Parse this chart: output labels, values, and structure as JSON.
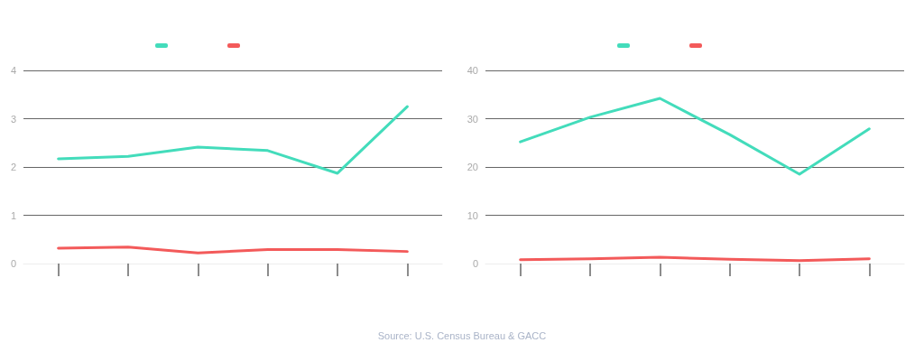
{
  "chart_data": [
    {
      "type": "line",
      "categories": [
        null,
        null,
        null,
        null,
        null,
        null
      ],
      "ylim": [
        0,
        4
      ],
      "yticks": [
        0,
        1,
        2,
        3,
        4
      ],
      "grid": "y",
      "marker": "none",
      "line_style": "solid",
      "series": [
        {
          "color": "#43dcbb",
          "values": [
            2.17,
            2.22,
            2.41,
            2.34,
            1.87,
            3.25
          ]
        },
        {
          "color": "#f35a5a",
          "values": [
            0.32,
            0.34,
            0.22,
            0.29,
            0.29,
            0.25
          ]
        }
      ]
    },
    {
      "type": "line",
      "categories": [
        null,
        null,
        null,
        null,
        null,
        null
      ],
      "ylim": [
        0,
        40
      ],
      "yticks": [
        0,
        10,
        20,
        30,
        40
      ],
      "grid": "y",
      "marker": "none",
      "line_style": "solid",
      "series": [
        {
          "color": "#43dcbb",
          "values": [
            25.2,
            30.3,
            34.2,
            26.7,
            18.5,
            27.9
          ]
        },
        {
          "color": "#f35a5a",
          "values": [
            0.8,
            1.0,
            1.3,
            0.9,
            0.6,
            1.0
          ]
        }
      ],
      "annotations": [
        "Source: U.S. Census Bureau & GACC"
      ]
    }
  ]
}
